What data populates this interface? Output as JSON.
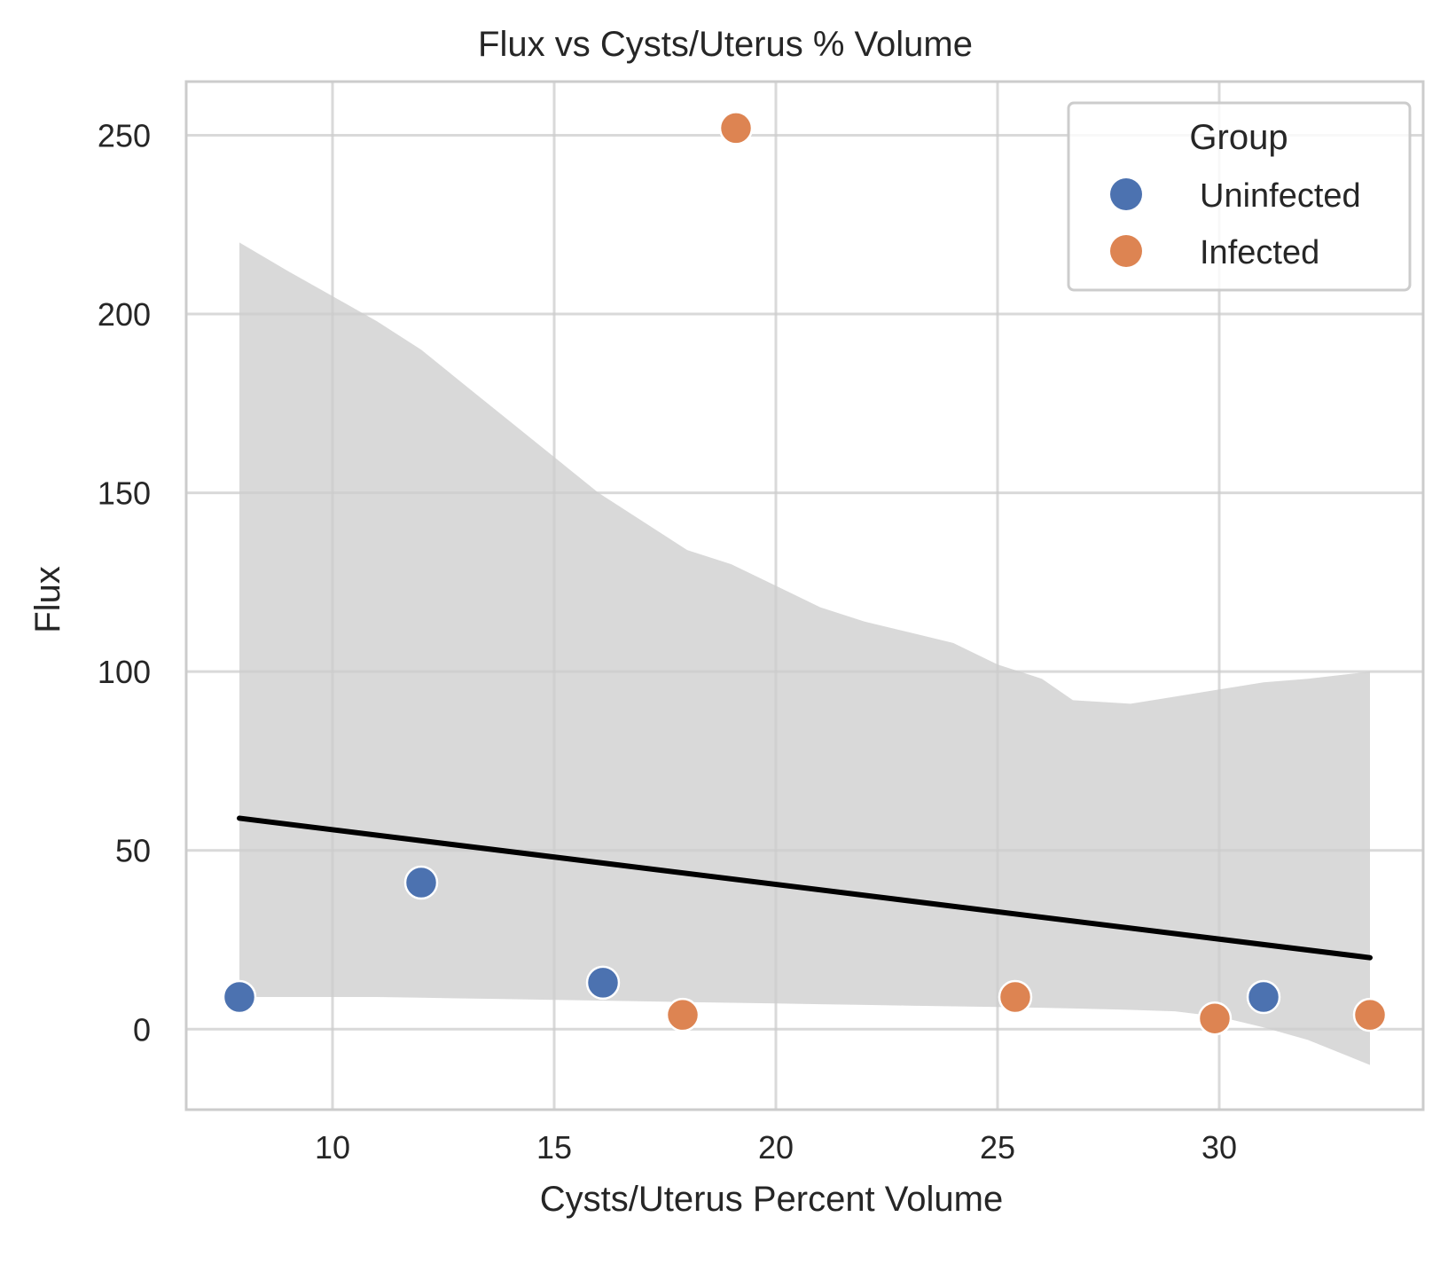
{
  "chart_data": {
    "type": "scatter",
    "title": "Flux vs Cysts/Uterus % Volume",
    "xlabel": "Cysts/Uterus Percent Volume",
    "ylabel": "Flux",
    "xlim": [
      6.7,
      34.6
    ],
    "ylim": [
      -22.5,
      265
    ],
    "xticks": [
      10,
      15,
      20,
      25,
      30
    ],
    "yticks": [
      0,
      50,
      100,
      150,
      200,
      250
    ],
    "grid": true,
    "legend": {
      "title": "Group",
      "placement": "top-right"
    },
    "colors": {
      "Uninfected": "#4c72b0",
      "Infected": "#dd8452",
      "line": "#000000",
      "band": "#d9d9d9",
      "grid": "#cccccc",
      "frame": "#cccccc"
    },
    "series": [
      {
        "name": "Uninfected",
        "x": [
          7.9,
          12.0,
          16.1,
          31.0
        ],
        "y": [
          9.0,
          41.0,
          13.0,
          9.0
        ]
      },
      {
        "name": "Infected",
        "x": [
          17.9,
          19.1,
          25.4,
          29.9,
          33.4
        ],
        "y": [
          4.0,
          252.0,
          9.0,
          3.0,
          4.0
        ]
      }
    ],
    "regression_line": {
      "x": [
        7.9,
        33.4
      ],
      "y": [
        59.0,
        20.0
      ]
    },
    "confidence_band": {
      "x": [
        7.9,
        9.0,
        10.0,
        11.0,
        12.0,
        13.0,
        14.0,
        15.0,
        16.0,
        17.0,
        18.0,
        19.0,
        20.0,
        21.0,
        22.0,
        23.0,
        24.0,
        25.0,
        26.0,
        26.7,
        28.0,
        29.0,
        30.0,
        31.0,
        32.0,
        33.4
      ],
      "upper": [
        220.0,
        212.0,
        205.0,
        198.0,
        190.0,
        180.0,
        170.0,
        160.0,
        150.0,
        142.0,
        134.0,
        130.0,
        124.0,
        118.0,
        114.0,
        111.0,
        108.0,
        102.0,
        98.0,
        92.0,
        91.0,
        93.0,
        95.0,
        97.0,
        98.0,
        100.0
      ],
      "lower": [
        9.0,
        9.0,
        9.0,
        9.0,
        8.8,
        8.6,
        8.4,
        8.2,
        8.0,
        7.8,
        7.6,
        7.4,
        7.2,
        7.0,
        6.8,
        6.6,
        6.4,
        6.2,
        6.0,
        5.8,
        5.4,
        5.0,
        3.5,
        0.5,
        -3.0,
        -10.0
      ]
    }
  }
}
